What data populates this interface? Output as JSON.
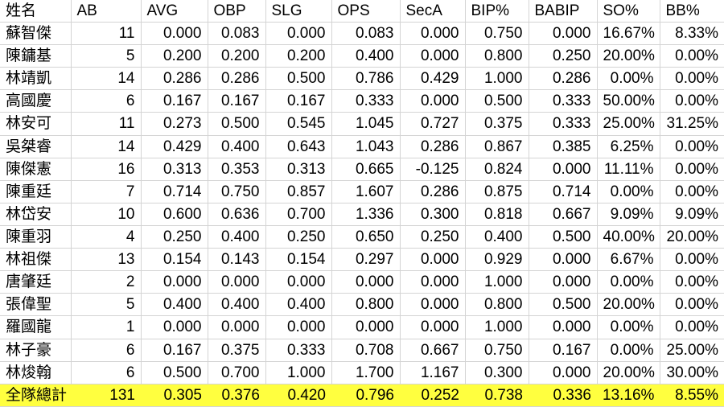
{
  "chart_data": {
    "type": "table",
    "columns": [
      "姓名",
      "AB",
      "AVG",
      "OBP",
      "SLG",
      "OPS",
      "SecA",
      "BIP%",
      "BABIP",
      "SO%",
      "BB%"
    ],
    "rows": [
      [
        "蘇智傑",
        "11",
        "0.000",
        "0.083",
        "0.000",
        "0.083",
        "0.000",
        "0.750",
        "0.000",
        "16.67%",
        "8.33%"
      ],
      [
        "陳鏞基",
        "5",
        "0.200",
        "0.200",
        "0.200",
        "0.400",
        "0.000",
        "0.800",
        "0.250",
        "20.00%",
        "0.00%"
      ],
      [
        "林靖凱",
        "14",
        "0.286",
        "0.286",
        "0.500",
        "0.786",
        "0.429",
        "1.000",
        "0.286",
        "0.00%",
        "0.00%"
      ],
      [
        "高國慶",
        "6",
        "0.167",
        "0.167",
        "0.167",
        "0.333",
        "0.000",
        "0.500",
        "0.333",
        "50.00%",
        "0.00%"
      ],
      [
        "林安可",
        "11",
        "0.273",
        "0.500",
        "0.545",
        "1.045",
        "0.727",
        "0.375",
        "0.333",
        "25.00%",
        "31.25%"
      ],
      [
        "吳桀睿",
        "14",
        "0.429",
        "0.400",
        "0.643",
        "1.043",
        "0.286",
        "0.867",
        "0.385",
        "6.25%",
        "0.00%"
      ],
      [
        "陳傑憲",
        "16",
        "0.313",
        "0.353",
        "0.313",
        "0.665",
        "-0.125",
        "0.824",
        "0.000",
        "11.11%",
        "0.00%"
      ],
      [
        "陳重廷",
        "7",
        "0.714",
        "0.750",
        "0.857",
        "1.607",
        "0.286",
        "0.875",
        "0.714",
        "0.00%",
        "0.00%"
      ],
      [
        "林岱安",
        "10",
        "0.600",
        "0.636",
        "0.700",
        "1.336",
        "0.300",
        "0.818",
        "0.667",
        "9.09%",
        "9.09%"
      ],
      [
        "陳重羽",
        "4",
        "0.250",
        "0.400",
        "0.250",
        "0.650",
        "0.250",
        "0.400",
        "0.500",
        "40.00%",
        "20.00%"
      ],
      [
        "林祖傑",
        "13",
        "0.154",
        "0.143",
        "0.154",
        "0.297",
        "0.000",
        "0.929",
        "0.000",
        "6.67%",
        "0.00%"
      ],
      [
        "唐肇廷",
        "2",
        "0.000",
        "0.000",
        "0.000",
        "0.000",
        "0.000",
        "1.000",
        "0.000",
        "0.00%",
        "0.00%"
      ],
      [
        "張偉聖",
        "5",
        "0.400",
        "0.400",
        "0.400",
        "0.800",
        "0.000",
        "0.800",
        "0.500",
        "20.00%",
        "0.00%"
      ],
      [
        "羅國龍",
        "1",
        "0.000",
        "0.000",
        "0.000",
        "0.000",
        "0.000",
        "1.000",
        "0.000",
        "0.00%",
        "0.00%"
      ],
      [
        "林子豪",
        "6",
        "0.167",
        "0.375",
        "0.333",
        "0.708",
        "0.667",
        "0.750",
        "0.167",
        "0.00%",
        "25.00%"
      ],
      [
        "林焌翰",
        "6",
        "0.500",
        "0.700",
        "1.000",
        "1.700",
        "1.167",
        "0.300",
        "0.000",
        "20.00%",
        "30.00%"
      ]
    ],
    "total_row": [
      "全隊總計",
      "131",
      "0.305",
      "0.376",
      "0.420",
      "0.796",
      "0.252",
      "0.738",
      "0.336",
      "13.16%",
      "8.55%"
    ],
    "total_row_highlight": "#ffff3f",
    "grid_color": "#d4d4d4"
  }
}
